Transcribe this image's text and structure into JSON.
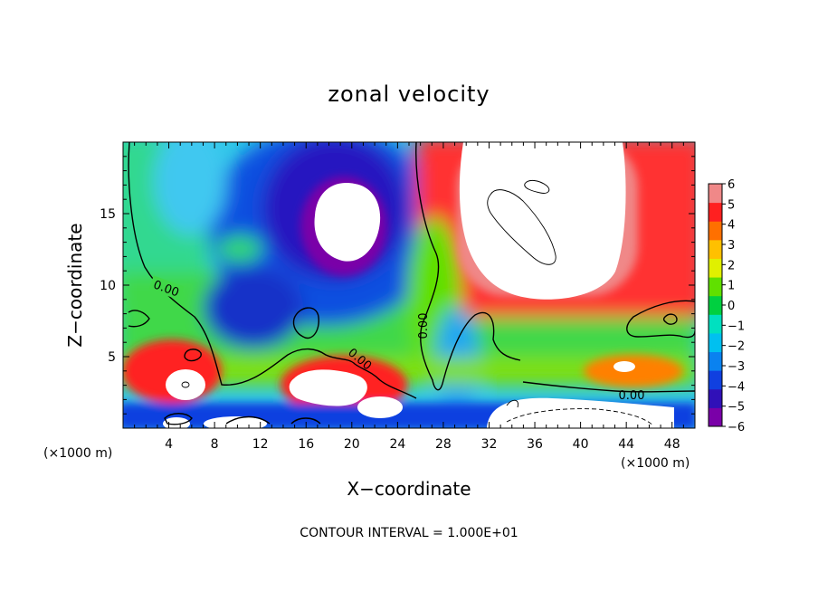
{
  "chart_data": {
    "type": "heatmap",
    "title": "zonal velocity",
    "xlabel": "X−coordinate",
    "ylabel": "Z−coordinate",
    "x_unit_left": "(×1000 m)",
    "x_unit_right": "(×1000 m)",
    "xlim": [
      0,
      50
    ],
    "ylim": [
      0,
      20
    ],
    "x_ticks": [
      4,
      8,
      12,
      16,
      20,
      24,
      28,
      32,
      36,
      40,
      44,
      48
    ],
    "y_ticks": [
      5,
      10,
      15
    ],
    "colorbar": {
      "min": -6,
      "max": 6,
      "ticks": [
        6,
        5,
        4,
        3,
        2,
        1,
        0,
        -1,
        -2,
        -3,
        -4,
        -5,
        -6
      ],
      "tick_labels": [
        "6",
        "5",
        "4",
        "3",
        "2",
        "1",
        "0",
        "−1",
        "−2",
        "−3",
        "−4",
        "−5",
        "−6"
      ],
      "colors": [
        "#7a00a8",
        "#3010b8",
        "#1040e0",
        "#0a82f0",
        "#00c0f0",
        "#00e0c0",
        "#00d040",
        "#60e000",
        "#e0f000",
        "#ffc000",
        "#ff7000",
        "#ff2020",
        "#f08888"
      ]
    },
    "contour_labels": [
      "0.00",
      "0.00",
      "0.00",
      "0.00"
    ],
    "contour_interval_label": "CONTOUR INTERVAL = 1.000E+01"
  }
}
